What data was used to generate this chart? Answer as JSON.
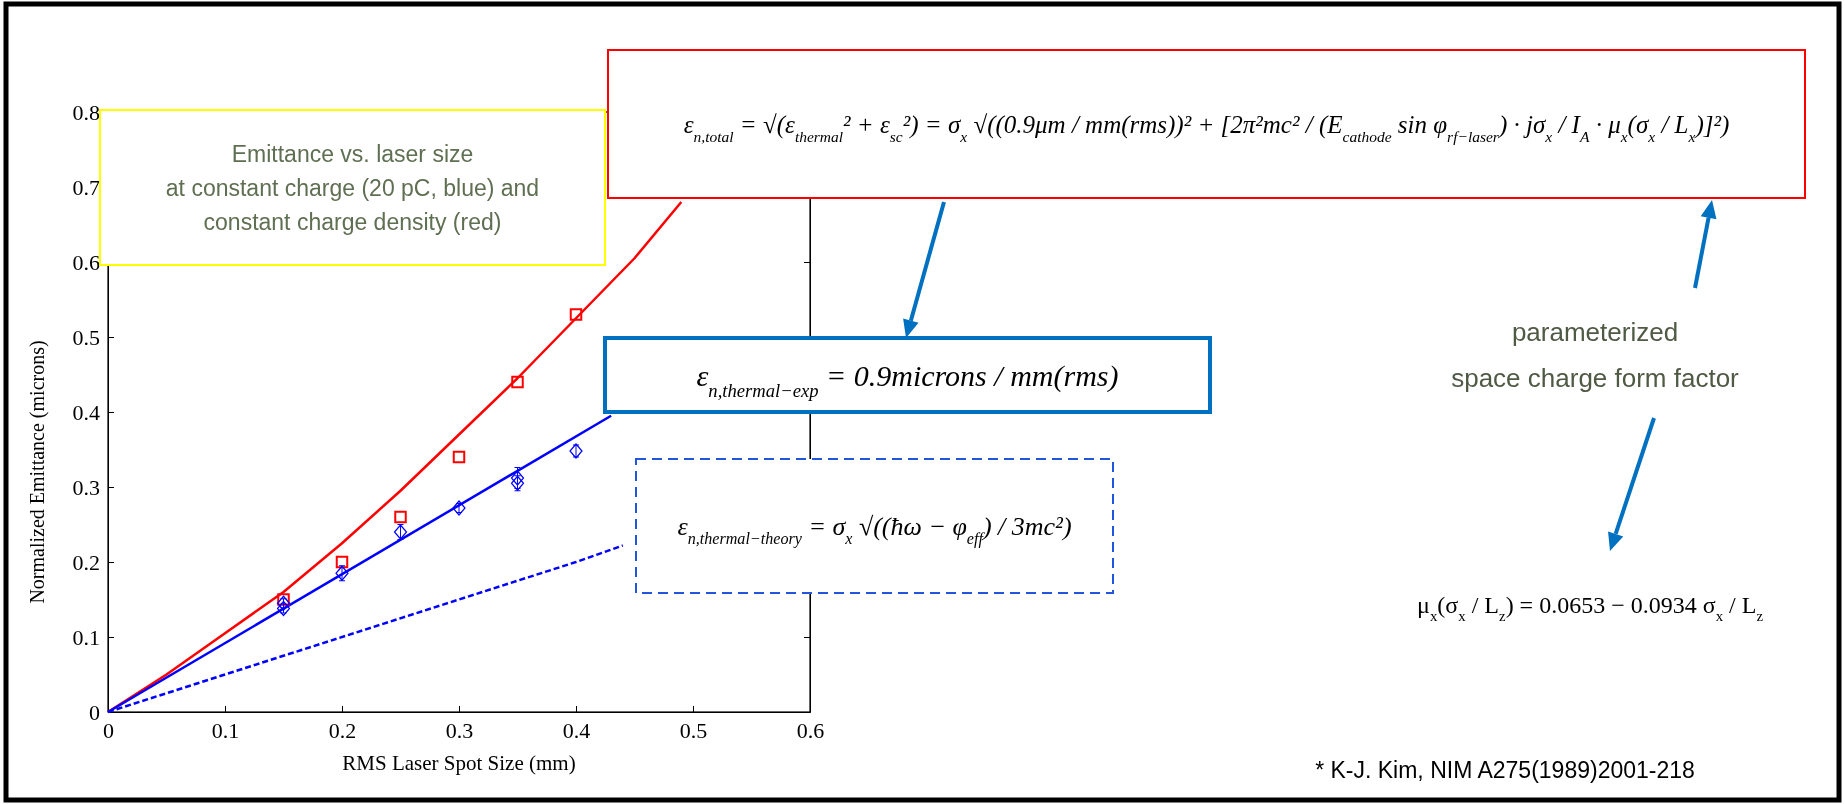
{
  "chart_data": {
    "type": "scatter",
    "xlabel": "RMS Laser Spot Size (mm)",
    "ylabel": "Normalized Emittance (microns)",
    "xlim": [
      0,
      0.6
    ],
    "xticks": [
      0,
      0.1,
      0.2,
      0.3,
      0.4,
      0.5,
      0.6
    ],
    "ylim": [
      0,
      0.8
    ],
    "yticks": [
      0,
      0.1,
      0.2,
      0.3,
      0.4,
      0.5,
      0.6,
      0.7,
      0.8
    ],
    "grid": false,
    "series": [
      {
        "type": "line",
        "color": "#ff0000",
        "line_style": "solid",
        "x": [
          0,
          0.05,
          0.1,
          0.15,
          0.2,
          0.25,
          0.3,
          0.35,
          0.4,
          0.45,
          0.49
        ],
        "values": [
          0,
          0.05,
          0.105,
          0.16,
          0.225,
          0.295,
          0.37,
          0.445,
          0.525,
          0.605,
          0.68
        ]
      },
      {
        "type": "line",
        "color": "#0000ff",
        "line_style": "solid",
        "x": [
          0,
          0.43
        ],
        "values": [
          0,
          0.395
        ]
      },
      {
        "type": "line",
        "color": "#0000ff",
        "line_style": "dashed",
        "x": [
          0,
          0.4,
          0.44
        ],
        "values": [
          0,
          0.2,
          0.222
        ]
      },
      {
        "color": "#ff0000",
        "marker": "square",
        "x": [
          0.15,
          0.2,
          0.25,
          0.3,
          0.35,
          0.4
        ],
        "values": [
          0.15,
          0.2,
          0.26,
          0.34,
          0.44,
          0.53
        ]
      },
      {
        "color": "#0000ff",
        "marker": "diamond",
        "x": [
          0.15,
          0.15,
          0.2,
          0.25,
          0.3,
          0.35,
          0.35,
          0.4
        ],
        "values": [
          0.145,
          0.138,
          0.185,
          0.24,
          0.272,
          0.312,
          0.305,
          0.348
        ],
        "errors": [
          0.006,
          0.006,
          0.01,
          0.01,
          0.006,
          0.014,
          0.01,
          0.008
        ]
      }
    ],
    "annotations": [
      "Emittance vs. laser size\nat constant charge (20 pC, blue) and\nconstant charge density (red)",
      "ε$_{n,total}$ = √(ε$_{thermal}$² + ε$_{sc}$²) = σ$_{x}$ √((0.9μm / mm(rms))² + [2π²mc² / (E$_{cathode}$ sin φ$_{rf−laser}$) · jσ$_{x}$ / I$_{A}$ · μ$_{x}$(σ$_{x}$ / L$_{x}$)]²)",
      "ε$_{n,thermal−exp}$ = 0.9microns / mm(rms)",
      "ε$_{n,thermal−theory}$ = σ$_{x}$ √((ħω − φ$_{eff}$) / 3mc²)",
      "parameterized\nspace charge form factor",
      "μ$_{x}$(σ$_{x}$ / L$_{z}$) = 0.0653 − 0.0934 σ$_{x}$ / L$_{z}$",
      "* K-J. Kim, NIM A275(1989)2001-218"
    ]
  }
}
